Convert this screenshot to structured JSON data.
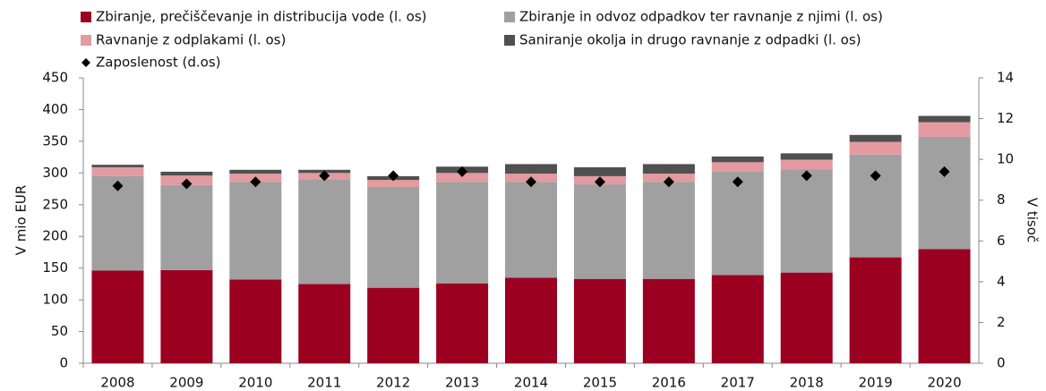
{
  "chart_data": {
    "type": "bar",
    "stacked": true,
    "categories": [
      "2008",
      "2009",
      "2010",
      "2011",
      "2012",
      "2013",
      "2014",
      "2015",
      "2016",
      "2017",
      "2018",
      "2019",
      "2020"
    ],
    "series": [
      {
        "name": "Zbiranje, prečiščevanje in distribucija vode (l. os)",
        "color": "#9b0020",
        "values": [
          146,
          147,
          132,
          125,
          119,
          126,
          135,
          133,
          133,
          139,
          143,
          167,
          180
        ]
      },
      {
        "name": "Zbiranje in odvoz odpadkov ter ravnanje z njimi (l. os)",
        "color": "#a0a0a0",
        "values": [
          149,
          134,
          154,
          165,
          159,
          160,
          151,
          149,
          153,
          164,
          163,
          162,
          177
        ]
      },
      {
        "name": "Ravnanje z odplakami (l. os)",
        "color": "#e39aa0",
        "values": [
          14,
          15,
          13,
          10,
          11,
          14,
          13,
          13,
          13,
          14,
          15,
          20,
          23
        ]
      },
      {
        "name": "Saniranje okolja in drugo ravnanje z odpadki (l. os)",
        "color": "#505050",
        "values": [
          4,
          6,
          6,
          5,
          6,
          10,
          15,
          14,
          15,
          9,
          10,
          11,
          10
        ]
      },
      {
        "name": "Zaposlenost (d.os)",
        "color": "#000000",
        "type": "scatter",
        "axis": "y2",
        "values": [
          8.7,
          8.8,
          8.9,
          9.2,
          9.2,
          9.4,
          8.9,
          8.9,
          8.9,
          8.9,
          9.2,
          9.2,
          9.4
        ]
      }
    ],
    "y_label": "V mio EUR",
    "y2_label": "V tisoč",
    "ylim": [
      0,
      450
    ],
    "yticks": [
      0,
      50,
      100,
      150,
      200,
      250,
      300,
      350,
      400,
      450
    ],
    "y2lim": [
      0,
      14
    ],
    "y2ticks": [
      0,
      2,
      4,
      6,
      8,
      10,
      12,
      14
    ],
    "grid": false
  }
}
